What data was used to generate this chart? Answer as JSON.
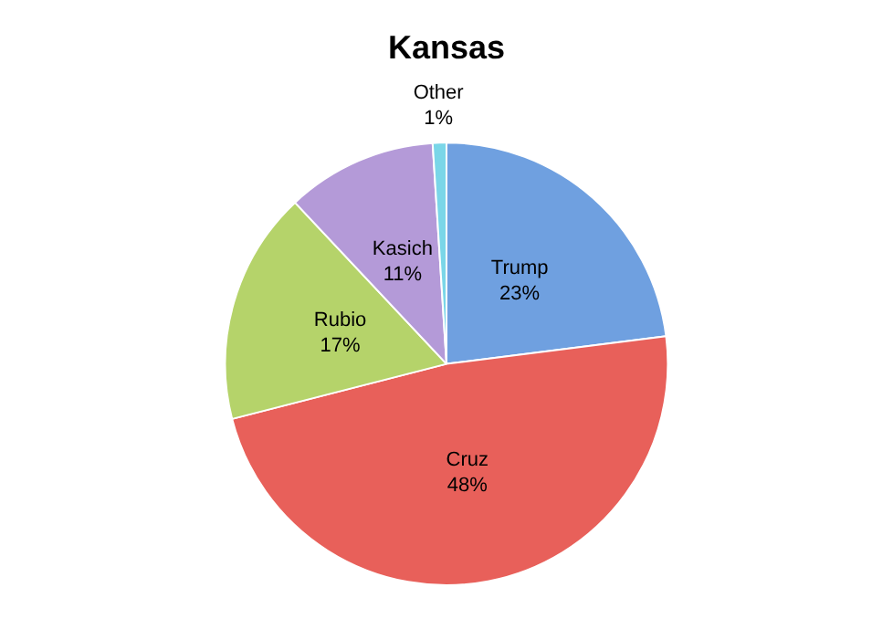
{
  "chart_data": {
    "type": "pie",
    "title": "Kansas",
    "categories": [
      "Trump",
      "Cruz",
      "Rubio",
      "Kasich",
      "Other"
    ],
    "values": [
      23,
      48,
      17,
      11,
      1
    ],
    "colors": [
      "#6fa0e0",
      "#e8605a",
      "#b5d36a",
      "#b49ad8",
      "#7ad6e8"
    ],
    "value_labels": [
      "23%",
      "48%",
      "17%",
      "11%",
      "1%"
    ],
    "legend": false
  }
}
